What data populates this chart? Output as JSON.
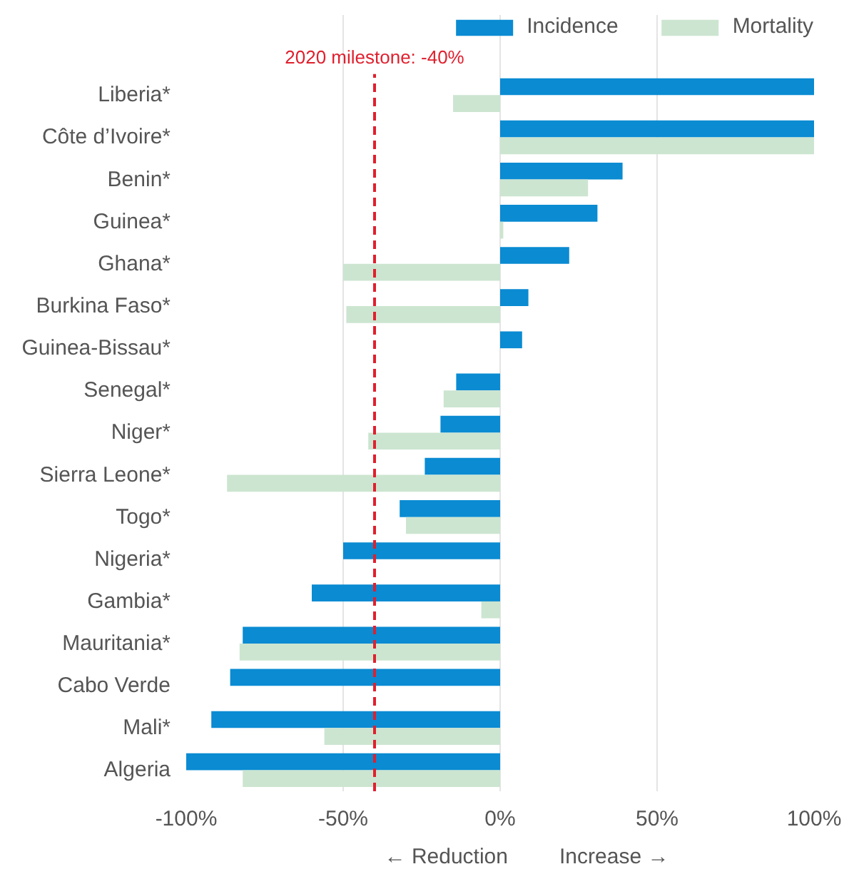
{
  "chart_data": {
    "type": "bar",
    "orientation": "horizontal",
    "categories": [
      "Liberia*",
      "Côte d’Ivoire*",
      "Benin*",
      "Guinea*",
      "Ghana*",
      "Burkina Faso*",
      "Guinea-Bissau*",
      "Senegal*",
      "Niger*",
      "Sierra Leone*",
      "Togo*",
      "Nigeria*",
      "Gambia*",
      "Mauritania*",
      "Cabo Verde",
      "Mali*",
      "Algeria"
    ],
    "series": [
      {
        "name": "Incidence",
        "color": "#0a8bd2",
        "values": [
          100,
          100,
          39,
          31,
          22,
          9,
          7,
          -14,
          -19,
          -24,
          -32,
          -50,
          -60,
          -82,
          -86,
          -92,
          -100
        ]
      },
      {
        "name": "Mortality",
        "color": "#cce5d0",
        "values": [
          -15,
          100,
          28,
          1,
          -50,
          -49,
          null,
          -18,
          -42,
          -87,
          -30,
          null,
          -6,
          -83,
          null,
          -56,
          -82
        ]
      }
    ],
    "xlim": [
      -100,
      100
    ],
    "xticks": [
      {
        "value": -100,
        "label": "-100%"
      },
      {
        "value": -50,
        "label": "-50%"
      },
      {
        "value": 0,
        "label": "0%"
      },
      {
        "value": 50,
        "label": "50%"
      },
      {
        "value": 100,
        "label": "100%"
      }
    ],
    "ref_lines": [
      {
        "axis": "x",
        "value": -40,
        "label": "2020 milestone: -40%",
        "color": "#e0202e",
        "line_style": "dashed"
      }
    ],
    "annotations": [
      "← Reduction",
      "Increase →"
    ],
    "grid": "x",
    "legend": "top right"
  }
}
